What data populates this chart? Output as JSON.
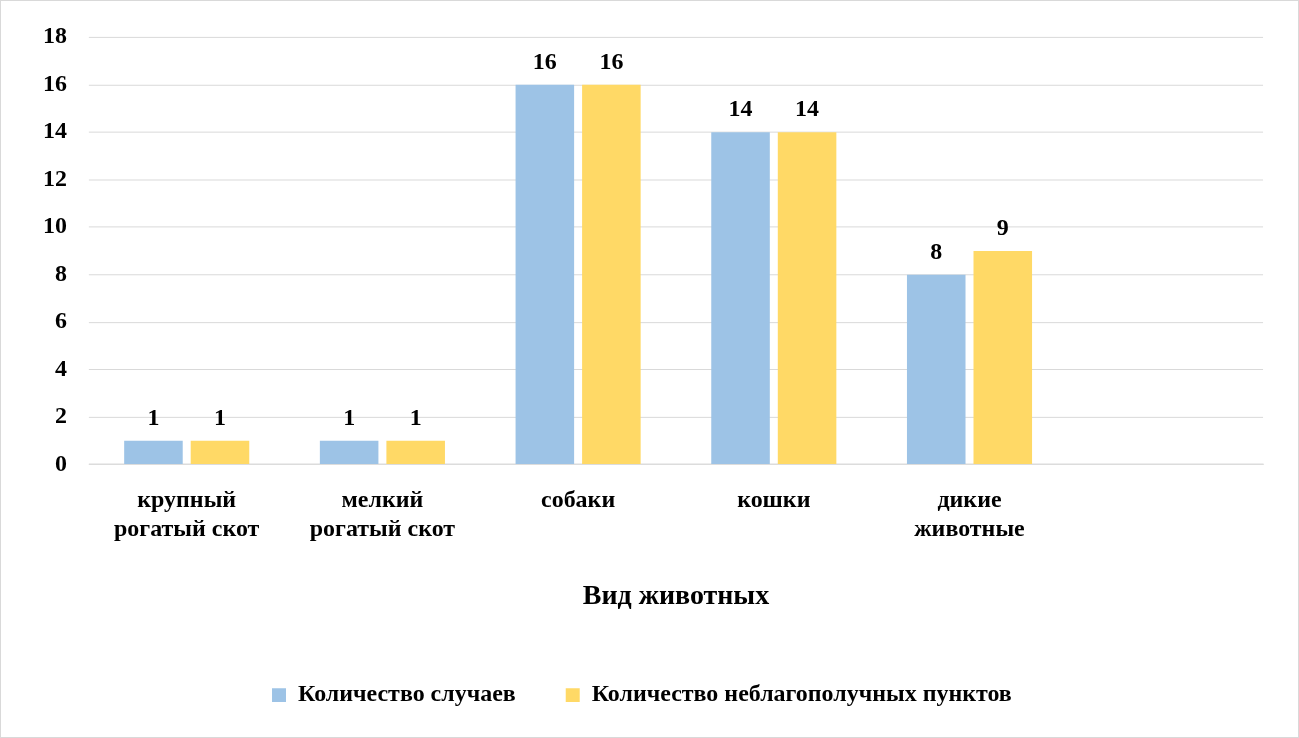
{
  "chart_data": {
    "type": "bar",
    "xlabel": "Вид животных",
    "categories": [
      "крупный рогатый скот",
      "мелкий рогатый скот",
      "собаки",
      "кошки",
      "дикие животные",
      null
    ],
    "series": [
      {
        "name": "Количество случаев",
        "color": "#9dc3e6",
        "values": [
          1,
          1,
          16,
          14,
          8,
          null
        ]
      },
      {
        "name": "Количество неблагополучных пунктов",
        "color": "#ffd966",
        "values": [
          1,
          1,
          16,
          14,
          9,
          null
        ]
      }
    ],
    "ylim": [
      0,
      18
    ],
    "yticks": [
      0,
      2,
      4,
      6,
      8,
      10,
      12,
      14,
      16,
      18
    ],
    "grid": "y",
    "legend": "bottom",
    "data_labels": true
  }
}
